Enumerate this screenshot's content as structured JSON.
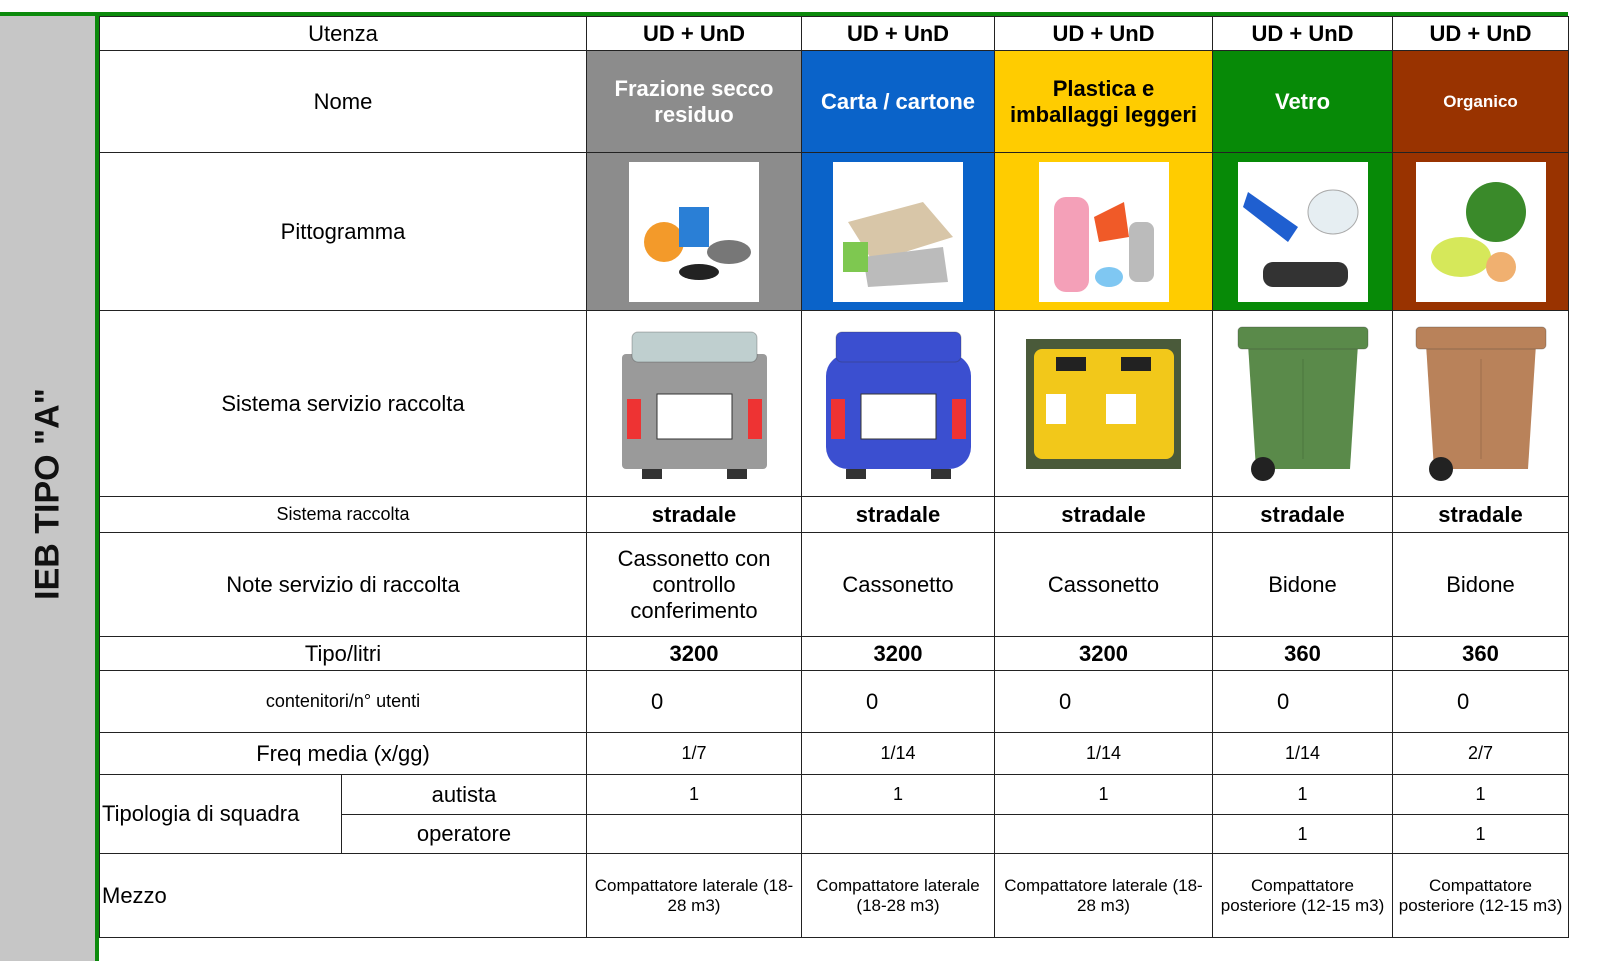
{
  "side_label": "IEB TIPO \"A\"",
  "column_colors": [
    "#8c8c8c",
    "#0a63c9",
    "#ffcc00",
    "#078a07",
    "#993300"
  ],
  "container_colors": [
    "#9a9a9a",
    "#3b4fd0",
    "#f2c81a",
    "#5a8a4a",
    "#b9825a"
  ],
  "table": {
    "rows": [
      {
        "label": "Utenza",
        "cells": [
          "UD + UnD",
          "UD + UnD",
          "UD + UnD",
          "UD + UnD",
          "UD + UnD"
        ]
      },
      {
        "label": "Nome",
        "cells": [
          "Frazione secco residuo",
          "Carta / cartone",
          "Plastica e imballaggi leggeri",
          "Vetro",
          "Organico"
        ]
      },
      {
        "label": "Pittogramma"
      },
      {
        "label": "Sistema servizio raccolta"
      },
      {
        "label": "Sistema raccolta",
        "cells": [
          "stradale",
          "stradale",
          "stradale",
          "stradale",
          "stradale"
        ]
      },
      {
        "label": "Note servizio di raccolta",
        "cells": [
          "Cassonetto con controllo conferimento",
          "Cassonetto",
          "Cassonetto",
          "Bidone",
          "Bidone"
        ]
      },
      {
        "label": "Tipo/litri",
        "cells": [
          3200,
          3200,
          3200,
          360,
          360
        ]
      },
      {
        "label": "contenitori/n° utenti",
        "cells": [
          0,
          0,
          0,
          0,
          0
        ]
      },
      {
        "label": "Freq media (x/gg)",
        "cells": [
          "1/7",
          "1/14",
          "1/14",
          "1/14",
          "2/7"
        ]
      },
      {
        "group": "Tipologia di squadra",
        "label": "autista",
        "cells": [
          1,
          1,
          1,
          1,
          1
        ]
      },
      {
        "label": "operatore",
        "cells": [
          null,
          null,
          null,
          1,
          1
        ]
      },
      {
        "label": "Mezzo",
        "cells": [
          "Compattatore laterale (18-28 m3)",
          "Compattatore laterale (18-28 m3)",
          "Compattatore laterale (18-28 m3)",
          "Compattatore posteriore (12-15 m3)",
          "Compattatore posteriore (12-15 m3)"
        ]
      }
    ]
  }
}
